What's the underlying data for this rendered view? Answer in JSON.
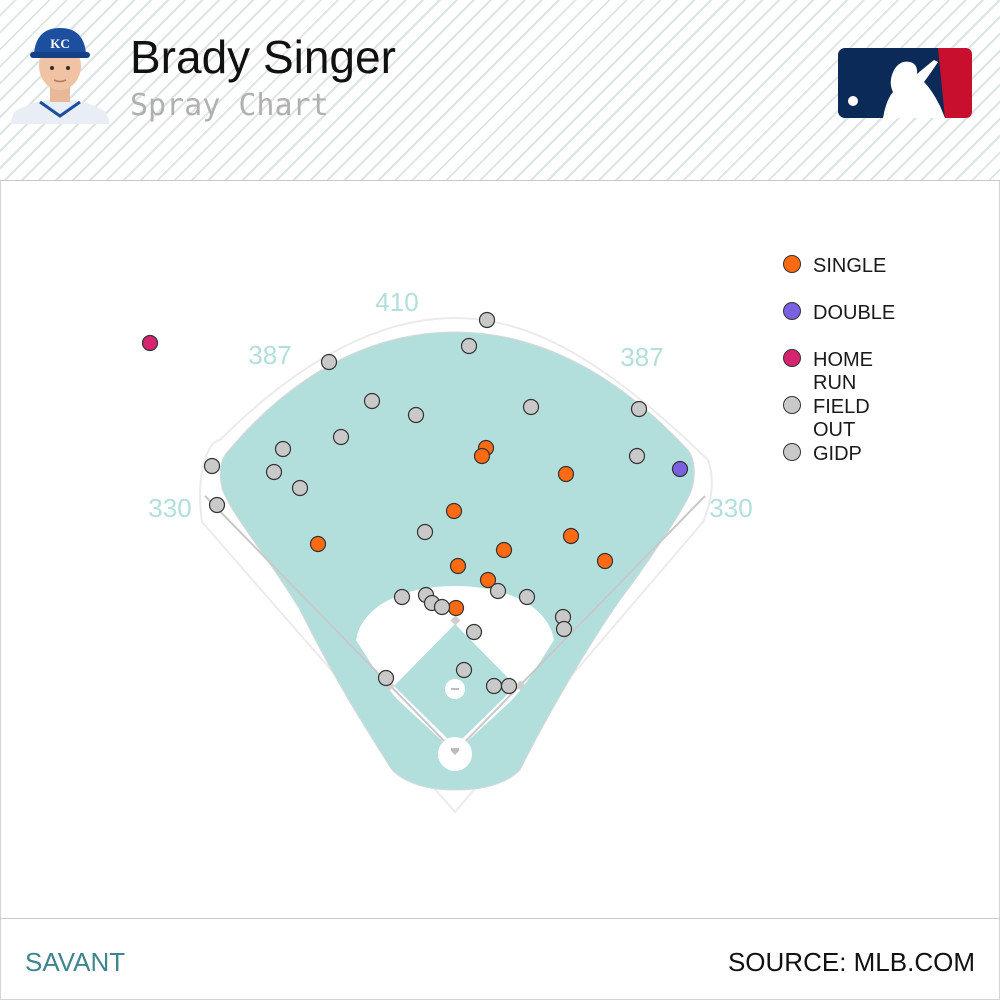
{
  "header": {
    "player_name": "Brady Singer",
    "subtitle": "Spray Chart",
    "headshot_icon": "player-headshot",
    "logo_icon": "mlb-logo"
  },
  "colors": {
    "field": "#b2dfdc",
    "infield_dirt": "#ffffff",
    "fence_lines": "#ebebeb",
    "distance_labels": "#b2dfdc",
    "logo_blue": "#0b2a58",
    "logo_red": "#c8102e"
  },
  "field_labels": {
    "lf_line": "330",
    "lcf": "387",
    "cf": "410",
    "rcf": "387",
    "rf_line": "330"
  },
  "legend": [
    {
      "label": "SINGLE",
      "color": "#ff6a13"
    },
    {
      "label": "DOUBLE",
      "color": "#7b61e0"
    },
    {
      "label": "HOME RUN",
      "color": "#d6246e"
    },
    {
      "label": "FIELD OUT",
      "color": "#c9c9c9"
    },
    {
      "label": "GIDP",
      "color": "#c9c9c9"
    }
  ],
  "chart_data": {
    "type": "scatter",
    "title": "Spray Chart",
    "series": [
      {
        "name": "SINGLE",
        "points": [
          [
            486,
            448
          ],
          [
            482,
            456
          ],
          [
            566,
            474
          ],
          [
            454,
            511
          ],
          [
            318,
            544
          ],
          [
            571,
            536
          ],
          [
            504,
            550
          ],
          [
            458,
            566
          ],
          [
            605,
            561
          ],
          [
            488,
            580
          ],
          [
            456,
            608
          ]
        ]
      },
      {
        "name": "DOUBLE",
        "points": [
          [
            680,
            469
          ]
        ]
      },
      {
        "name": "HOME RUN",
        "points": [
          [
            150,
            343
          ]
        ]
      },
      {
        "name": "FIELD OUT",
        "points": [
          [
            487,
            320
          ],
          [
            469,
            346
          ],
          [
            329,
            362
          ],
          [
            372,
            401
          ],
          [
            416,
            415
          ],
          [
            531,
            407
          ],
          [
            639,
            409
          ],
          [
            341,
            437
          ],
          [
            283,
            449
          ],
          [
            212,
            466
          ],
          [
            274,
            472
          ],
          [
            637,
            456
          ],
          [
            300,
            488
          ],
          [
            217,
            505
          ],
          [
            425,
            532
          ],
          [
            402,
            597
          ],
          [
            426,
            595
          ],
          [
            432,
            603
          ],
          [
            442,
            607
          ],
          [
            498,
            591
          ],
          [
            527,
            597
          ],
          [
            563,
            617
          ],
          [
            564,
            629
          ],
          [
            474,
            632
          ],
          [
            464,
            670
          ],
          [
            386,
            678
          ],
          [
            494,
            686
          ],
          [
            509,
            686
          ]
        ]
      }
    ]
  },
  "footer": {
    "left": "SAVANT",
    "right": "SOURCE: MLB.COM"
  }
}
